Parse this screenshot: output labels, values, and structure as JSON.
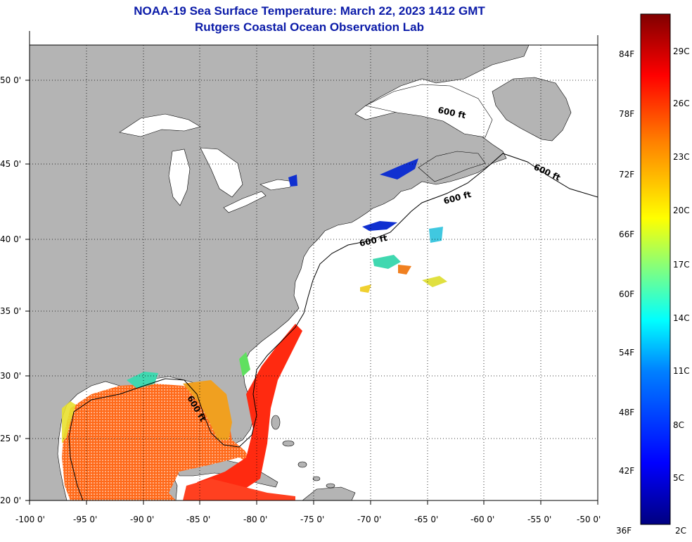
{
  "title": "NOAA-19 Sea Surface Temperature:  March 22, 2023 1412 GMT",
  "subtitle": "Rutgers Coastal Ocean Observation Lab",
  "map": {
    "lon_range": [
      -100,
      -50
    ],
    "lat_range": [
      20,
      52.5
    ],
    "lon_ticks": [
      "-100 0'",
      "-95 0'",
      "-90 0'",
      "-85 0'",
      "-80 0'",
      "-75 0'",
      "-70 0'",
      "-65 0'",
      "-60 0'",
      "-55 0'",
      "-50 0'"
    ],
    "lat_ticks": [
      "20 0'",
      "25 0'",
      "30 0'",
      "35 0'",
      "40 0'",
      "45 0'",
      "50 0'"
    ],
    "contour_label": "600 ft",
    "land_color": "#b4b4b4",
    "nodata_color": "#ffffff",
    "grid": "dotted"
  },
  "colorbar": {
    "fahrenheit_labels": [
      "84F",
      "78F",
      "72F",
      "66F",
      "60F",
      "54F",
      "48F",
      "42F",
      "36F"
    ],
    "celsius_labels": [
      "29C",
      "26C",
      "23C",
      "20C",
      "17C",
      "14C",
      "11C",
      "8C",
      "5C",
      "2C"
    ],
    "colors": [
      "#000080",
      "#0000ff",
      "#0080ff",
      "#00ffff",
      "#80ff80",
      "#ffff00",
      "#ff8000",
      "#ff0000",
      "#800000"
    ]
  }
}
